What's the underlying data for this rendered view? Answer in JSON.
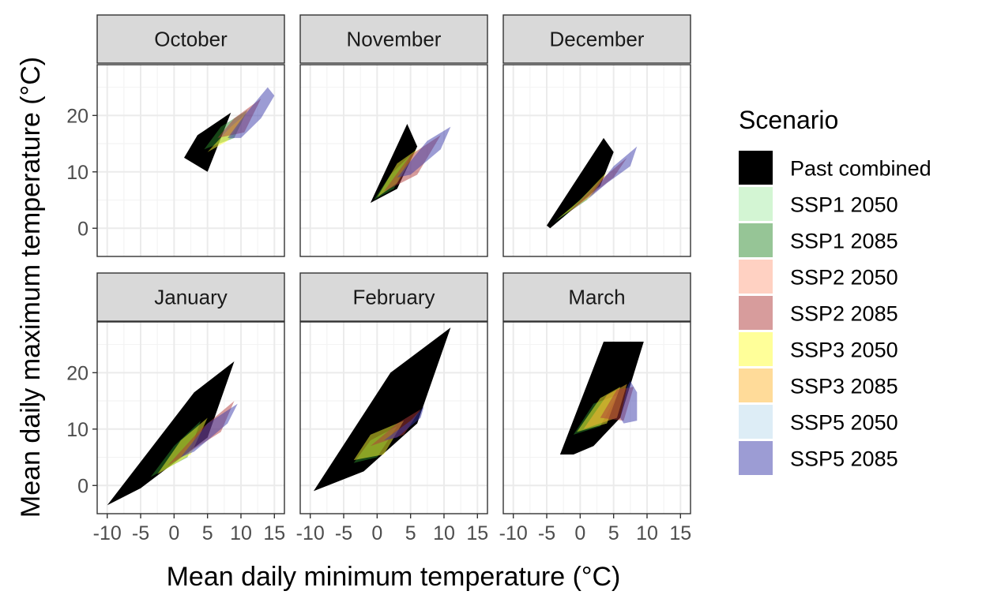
{
  "chart_data": {
    "type": "area",
    "xlabel": "Mean daily minimum temperature (°C)",
    "ylabel": "Mean daily maximum temperature (°C)",
    "xlim": [
      -11.5,
      16.5
    ],
    "ylim": [
      -5,
      29
    ],
    "x_ticks": [
      -10,
      -5,
      0,
      5,
      10,
      15
    ],
    "x_tick_labels": [
      "-10",
      "-5",
      "0",
      "5",
      "10",
      "15"
    ],
    "y_ticks": [
      0,
      10,
      20
    ],
    "y_tick_labels": [
      "0",
      "10",
      "20"
    ],
    "grid": true,
    "legend": {
      "title": "Scenario",
      "position": "right",
      "entries": [
        {
          "name": "Past combined",
          "color": "#000000",
          "opacity": 1.0
        },
        {
          "name": "SSP1 2050",
          "color": "#c8f2c8",
          "opacity": 0.8
        },
        {
          "name": "SSP1 2085",
          "color": "#2e8b2e",
          "opacity": 0.5
        },
        {
          "name": "SSP2 2050",
          "color": "#ffb39a",
          "opacity": 0.6
        },
        {
          "name": "SSP2 2085",
          "color": "#b03a3a",
          "opacity": 0.5
        },
        {
          "name": "SSP3 2050",
          "color": "#ffff33",
          "opacity": 0.5
        },
        {
          "name": "SSP3 2085",
          "color": "#ffb733",
          "opacity": 0.5
        },
        {
          "name": "SSP5 2050",
          "color": "#cfe6f2",
          "opacity": 0.7
        },
        {
          "name": "SSP5 2085",
          "color": "#3a3aaa",
          "opacity": 0.5
        }
      ]
    },
    "panels": [
      {
        "title": "October",
        "polygons": [
          {
            "series": "Past combined",
            "points": [
              [
                1.5,
                12.5
              ],
              [
                3.5,
                16.5
              ],
              [
                8.5,
                20.5
              ],
              [
                5,
                10
              ]
            ]
          },
          {
            "series": "SSP1 2085",
            "points": [
              [
                4.5,
                14
              ],
              [
                7,
                18
              ],
              [
                11,
                21
              ],
              [
                9,
                16
              ]
            ]
          },
          {
            "series": "SSP3 2050",
            "points": [
              [
                5,
                13.5
              ],
              [
                8.5,
                18
              ],
              [
                11,
                20.5
              ],
              [
                8,
                15.5
              ]
            ]
          },
          {
            "series": "SSP2 2085",
            "points": [
              [
                6.5,
                16
              ],
              [
                9,
                19.5
              ],
              [
                13,
                23
              ],
              [
                10.5,
                17
              ]
            ]
          },
          {
            "series": "SSP5 2085",
            "points": [
              [
                8,
                16
              ],
              [
                10.5,
                20
              ],
              [
                14,
                25
              ],
              [
                15,
                23.5
              ],
              [
                13,
                19.5
              ],
              [
                10,
                16
              ]
            ]
          }
        ]
      },
      {
        "title": "November",
        "polygons": [
          {
            "series": "Past combined",
            "points": [
              [
                -1,
                4.5
              ],
              [
                4.5,
                18.5
              ],
              [
                6,
                14.5
              ],
              [
                3,
                7
              ]
            ]
          },
          {
            "series": "SSP1 2085",
            "points": [
              [
                -0.5,
                5
              ],
              [
                2,
                9.5
              ],
              [
                5,
                13
              ],
              [
                2.5,
                7
              ]
            ]
          },
          {
            "series": "SSP3 2050",
            "points": [
              [
                0,
                5.5
              ],
              [
                3,
                11.5
              ],
              [
                6,
                14
              ],
              [
                3,
                8
              ]
            ]
          },
          {
            "series": "SSP2 2085",
            "points": [
              [
                1,
                6.5
              ],
              [
                5,
                13
              ],
              [
                9.5,
                16.5
              ],
              [
                6,
                9.5
              ]
            ]
          },
          {
            "series": "SSP5 2085",
            "points": [
              [
                3,
                9
              ],
              [
                7.5,
                15.5
              ],
              [
                11,
                18
              ],
              [
                9.5,
                14
              ],
              [
                5,
                9.5
              ]
            ]
          }
        ]
      },
      {
        "title": "December",
        "polygons": [
          {
            "series": "Past combined",
            "points": [
              [
                -5,
                0.5
              ],
              [
                3.5,
                16
              ],
              [
                5,
                13.5
              ],
              [
                3,
                7.5
              ],
              [
                -4.5,
                0
              ]
            ]
          },
          {
            "series": "SSP1 2085",
            "points": [
              [
                -4,
                1
              ],
              [
                -1,
                4
              ],
              [
                3,
                8.5
              ],
              [
                1,
                5
              ]
            ]
          },
          {
            "series": "SSP3 2050",
            "points": [
              [
                -3.5,
                1.5
              ],
              [
                0,
                5
              ],
              [
                4,
                10
              ],
              [
                2,
                6
              ]
            ]
          },
          {
            "series": "SSP2 2085",
            "points": [
              [
                -2,
                2.5
              ],
              [
                3,
                8.5
              ],
              [
                7,
                12.5
              ],
              [
                5,
                9
              ]
            ]
          },
          {
            "series": "SSP5 2085",
            "points": [
              [
                1,
                5
              ],
              [
                5,
                11
              ],
              [
                8.5,
                14.5
              ],
              [
                7.5,
                11
              ],
              [
                4,
                8
              ]
            ]
          }
        ]
      },
      {
        "title": "January",
        "polygons": [
          {
            "series": "Past combined",
            "points": [
              [
                -10,
                -3.5
              ],
              [
                3,
                16.5
              ],
              [
                9,
                22
              ],
              [
                5,
                8.5
              ],
              [
                -5,
                -0.5
              ]
            ]
          },
          {
            "series": "SSP1 2085",
            "points": [
              [
                -3.5,
                1.5
              ],
              [
                0,
                7
              ],
              [
                4,
                11.5
              ],
              [
                2,
                5
              ]
            ]
          },
          {
            "series": "SSP3 2050",
            "points": [
              [
                -2.5,
                2
              ],
              [
                1,
                8
              ],
              [
                5,
                12
              ],
              [
                2.5,
                5.5
              ]
            ]
          },
          {
            "series": "SSP2 2085",
            "points": [
              [
                -1,
                3.5
              ],
              [
                4,
                10
              ],
              [
                9,
                15
              ],
              [
                7,
                9.5
              ]
            ]
          },
          {
            "series": "SSP5 2085",
            "points": [
              [
                1,
                5
              ],
              [
                5,
                11
              ],
              [
                9.5,
                14.5
              ],
              [
                8,
                11
              ],
              [
                3,
                6
              ]
            ]
          }
        ]
      },
      {
        "title": "February",
        "polygons": [
          {
            "series": "Past combined",
            "points": [
              [
                -9.5,
                -1
              ],
              [
                2,
                20
              ],
              [
                11,
                28
              ],
              [
                6,
                11
              ],
              [
                -2,
                2.5
              ]
            ]
          },
          {
            "series": "SSP1 2085",
            "points": [
              [
                -3.5,
                4
              ],
              [
                -1,
                8
              ],
              [
                3,
                10.5
              ],
              [
                0,
                5
              ]
            ]
          },
          {
            "series": "SSP3 2050",
            "points": [
              [
                -3.5,
                4.5
              ],
              [
                -1,
                9
              ],
              [
                4,
                11.5
              ],
              [
                1,
                5.5
              ]
            ]
          },
          {
            "series": "SSP2 2085",
            "points": [
              [
                -1,
                7
              ],
              [
                3,
                11
              ],
              [
                6.5,
                13.5
              ],
              [
                4,
                9
              ]
            ]
          },
          {
            "series": "SSP5 2085",
            "points": [
              [
                1,
                8
              ],
              [
                5,
                11.5
              ],
              [
                7,
                14
              ],
              [
                6.5,
                12
              ],
              [
                3,
                8.5
              ]
            ]
          }
        ]
      },
      {
        "title": "March",
        "polygons": [
          {
            "series": "Past combined",
            "points": [
              [
                -3,
                5.5
              ],
              [
                3.5,
                25.5
              ],
              [
                9.5,
                25.5
              ],
              [
                6,
                12
              ],
              [
                2,
                7
              ],
              [
                -1,
                5.5
              ]
            ]
          },
          {
            "series": "SSP1 2085",
            "points": [
              [
                -1,
                9
              ],
              [
                2,
                14.5
              ],
              [
                5.5,
                16
              ],
              [
                3,
                10.5
              ]
            ]
          },
          {
            "series": "SSP3 2050",
            "points": [
              [
                -0.5,
                9.5
              ],
              [
                3,
                15.5
              ],
              [
                6,
                17.5
              ],
              [
                4,
                11
              ]
            ]
          },
          {
            "series": "SSP3 2085",
            "points": [
              [
                0.5,
                10
              ],
              [
                4,
                16
              ],
              [
                7,
                18
              ],
              [
                5.5,
                12
              ]
            ]
          },
          {
            "series": "SSP2 2085",
            "points": [
              [
                3,
                12
              ],
              [
                5.5,
                17
              ],
              [
                8,
                17.5
              ],
              [
                6.5,
                11.5
              ]
            ]
          },
          {
            "series": "SSP5 2085",
            "points": [
              [
                6,
                12
              ],
              [
                7,
                17.5
              ],
              [
                7.5,
                18.5
              ],
              [
                8.5,
                16.5
              ],
              [
                8.5,
                11.5
              ],
              [
                6.5,
                11
              ]
            ]
          }
        ]
      }
    ]
  }
}
